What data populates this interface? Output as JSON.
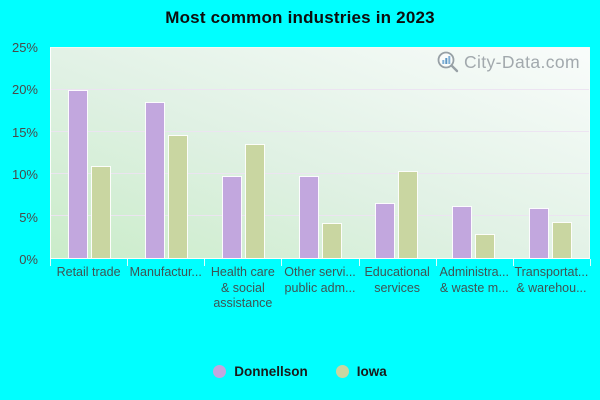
{
  "title": "Most common industries in 2023",
  "watermark": {
    "text": "City-Data.com"
  },
  "legend": [
    {
      "label": "Donnellson",
      "color": "#c2a7de"
    },
    {
      "label": "Iowa",
      "color": "#c9d6a1"
    }
  ],
  "y_axis": {
    "tick_labels": [
      "0%",
      "5%",
      "10%",
      "15%",
      "20%",
      "25%"
    ],
    "tick_values": [
      0,
      5,
      10,
      15,
      20,
      25
    ]
  },
  "chart_data": {
    "type": "bar",
    "title": "Most common industries in 2023",
    "categories": [
      "Retail trade",
      "Manufactur...",
      "Health care & social assistance",
      "Other servi... public adm...",
      "Educational services",
      "Administra... & waste m...",
      "Transportat... & warehou..."
    ],
    "category_display_lines": [
      [
        "Retail trade"
      ],
      [
        "Manufactur..."
      ],
      [
        "Health care",
        "& social",
        "assistance"
      ],
      [
        "Other servi...",
        "public adm..."
      ],
      [
        "Educational",
        "services"
      ],
      [
        "Administra...",
        "& waste m..."
      ],
      [
        "Transportat...",
        "& warehou..."
      ]
    ],
    "series": [
      {
        "name": "Donnellson",
        "color": "#c2a7de",
        "values": [
          20.0,
          18.6,
          9.8,
          9.8,
          6.5,
          6.2,
          5.9
        ]
      },
      {
        "name": "Iowa",
        "color": "#c9d6a1",
        "values": [
          10.9,
          14.7,
          13.6,
          4.2,
          10.4,
          2.8,
          4.3
        ]
      }
    ],
    "ylabel": "",
    "xlabel": "",
    "ylim": [
      0,
      25
    ],
    "gridline_values": [
      5,
      10,
      15,
      20
    ],
    "grid": true,
    "legend_position": "bottom"
  },
  "colors": {
    "background": "#00ffff",
    "plot_gradient_light": "#f9fcfb",
    "plot_gradient_dark": "#caecc9",
    "gridline": "#ece3f1",
    "title_text": "#0d0d0d",
    "y_tick_text": "#4a4a4a",
    "x_label_text": "#3e5454",
    "watermark_text": "#a2a9ad"
  }
}
